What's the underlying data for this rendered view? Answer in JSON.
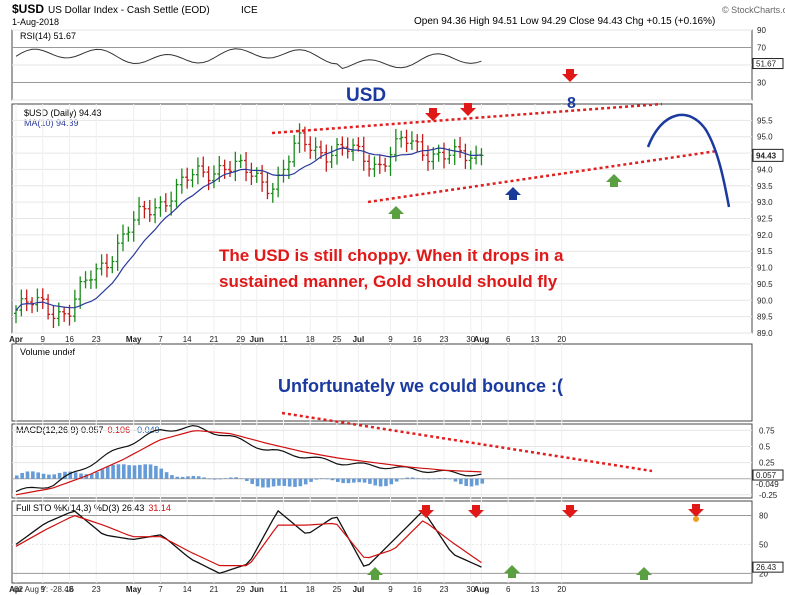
{
  "header": {
    "symbol": "$USD",
    "name": "US Dollar Index - Cash Settle (EOD)",
    "exchange": "ICE",
    "date": "1-Aug-2018",
    "ohlc": "Open 94.36  High 94.51  Low 94.29  Close 94.43  Chg +0.15 (+0.16%)",
    "watermark": "© StockCharts.com"
  },
  "chart_data": [
    {
      "type": "line",
      "title": "RSI(14) 51.67",
      "x": [
        "Apr 2",
        "Apr 23",
        "May 14",
        "Jun 4",
        "Jun 25",
        "Jul 16",
        "Aug 1"
      ],
      "values": [
        55,
        45,
        70,
        60,
        55,
        45,
        51.67
      ],
      "ylim": [
        10,
        90
      ],
      "yticks": [
        10,
        30,
        50,
        70,
        90
      ],
      "last_value_label": "51.67"
    },
    {
      "type": "line",
      "title": "$USD (Daily) 94.43",
      "series": [
        {
          "name": "$USD (Daily) 94.43",
          "x": [
            "Apr 2",
            "Apr 9",
            "Apr 16",
            "Apr 23",
            "Apr 30",
            "May 7",
            "May 14",
            "May 21",
            "May 29",
            "Jun 4",
            "Jun 11",
            "Jun 18",
            "Jun 25",
            "Jul 2",
            "Jul 9",
            "Jul 16",
            "Jul 23",
            "Jul 30",
            "Aug 1"
          ],
          "values": [
            89.7,
            89.9,
            89.6,
            90.8,
            91.8,
            92.7,
            93.3,
            93.8,
            94.2,
            93.8,
            93.6,
            94.8,
            94.6,
            94.5,
            94.2,
            94.8,
            94.6,
            94.3,
            94.43
          ]
        },
        {
          "name": "MA(10) 94.39",
          "x": [
            "Apr 2",
            "Apr 9",
            "Apr 16",
            "Apr 23",
            "Apr 30",
            "May 7",
            "May 14",
            "May 21",
            "May 29",
            "Jun 4",
            "Jun 11",
            "Jun 18",
            "Jun 25",
            "Jul 2",
            "Jul 9",
            "Jul 16",
            "Jul 23",
            "Jul 30",
            "Aug 1"
          ],
          "values": [
            89.8,
            89.8,
            89.7,
            90.2,
            91.0,
            92.0,
            92.8,
            93.4,
            93.8,
            93.9,
            93.7,
            94.3,
            94.6,
            94.5,
            94.3,
            94.6,
            94.6,
            94.4,
            94.39
          ]
        }
      ],
      "ylim": [
        89.0,
        96.0
      ],
      "yticks": [
        89.0,
        89.5,
        90.0,
        90.5,
        91.0,
        91.5,
        92.0,
        92.5,
        93.0,
        93.5,
        94.0,
        94.5,
        95.0,
        95.5
      ],
      "last_value_label": "94.43",
      "xticks": [
        "Apr",
        "9",
        "16",
        "23",
        "May",
        "7",
        "14",
        "21",
        "29",
        "Jun",
        "11",
        "18",
        "25",
        "Jul",
        "9",
        "16",
        "23",
        "30",
        "Aug",
        "6",
        "13",
        "20"
      ],
      "annotations": [
        "USD",
        "8",
        "The USD is still choppy. When it drops in a",
        "sustained manner, Gold should should fly"
      ]
    },
    {
      "type": "bar",
      "title": "Volume undef",
      "annotation": "Unfortunately we could bounce  :("
    },
    {
      "type": "line",
      "title": "MACD(12,26,9) 0.057, 0.106, -0.049",
      "legend": [
        "MACD(12,26,9) 0.057",
        "0.106",
        "-0.049"
      ],
      "series": [
        {
          "name": "MACD(12,26,9) 0.057",
          "values": [
            -0.2,
            -0.1,
            0.2,
            0.5,
            0.75,
            0.8,
            0.65,
            0.45,
            0.35,
            0.25,
            0.2,
            0.15,
            0.1,
            0.057
          ]
        },
        {
          "name": "0.106",
          "values": [
            -0.25,
            -0.15,
            0.05,
            0.3,
            0.6,
            0.75,
            0.7,
            0.55,
            0.42,
            0.32,
            0.25,
            0.18,
            0.13,
            0.106
          ]
        }
      ],
      "ylim": [
        -0.3,
        0.85
      ],
      "yticks": [
        0.75,
        0.5,
        0.25,
        -0.25
      ],
      "last_value_labels": [
        "0.057",
        "-0.049"
      ]
    },
    {
      "type": "line",
      "title": "Full STO %K(14,3) %D(3) 26.43, 31.14",
      "legend": [
        "Full STO %K(14,3) %D(3) 26.43",
        "31.14"
      ],
      "series": [
        {
          "name": "Full STO %K(14,3) %D(3) 26.43",
          "values": [
            50,
            72,
            85,
            60,
            55,
            60,
            35,
            20,
            30,
            85,
            60,
            80,
            25,
            55,
            85,
            40,
            26.43
          ]
        },
        {
          "name": "31.14",
          "values": [
            48,
            65,
            80,
            70,
            58,
            58,
            42,
            28,
            28,
            70,
            70,
            72,
            35,
            45,
            75,
            52,
            31.14
          ]
        }
      ],
      "ylim": [
        10,
        95
      ],
      "yticks": [
        80,
        50,
        20
      ],
      "last_value_label": "26.43",
      "cursor_readout": "02 Aug Y: -28.48"
    }
  ],
  "colors": {
    "up": "#1a8a1a",
    "down": "#c41a1a",
    "ma": "#2a3a9a",
    "trend": "#e02020",
    "annotation_red": "#e01818",
    "annotation_blue": "#1a3aa0",
    "arrow_green": "#5aa040",
    "arrow_blue": "#1a3a9a",
    "arrow_orange": "#f0a020",
    "macd_hist": "#4a8ad0",
    "rsi_fill": "#8a9a8a"
  }
}
